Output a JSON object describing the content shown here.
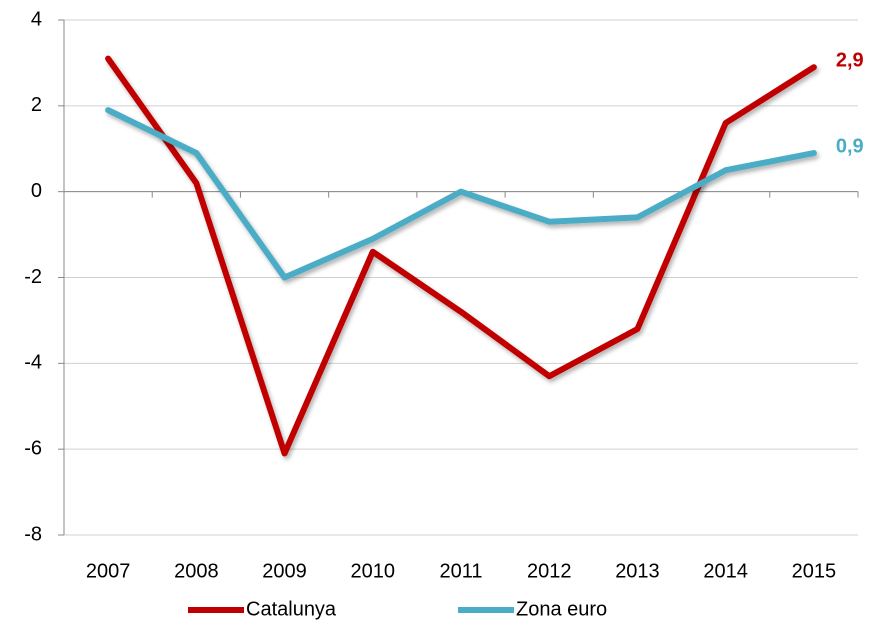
{
  "chart_data": {
    "type": "line",
    "categories": [
      "2007",
      "2008",
      "2009",
      "2010",
      "2011",
      "2012",
      "2013",
      "2014",
      "2015"
    ],
    "series": [
      {
        "name": "Catalunya",
        "color": "#c00000",
        "values": [
          3.1,
          0.2,
          -6.1,
          -1.4,
          -2.8,
          -4.3,
          -3.2,
          1.6,
          2.9
        ],
        "value_labels": [
          null,
          null,
          null,
          null,
          null,
          null,
          null,
          null,
          "2,9"
        ]
      },
      {
        "name": "Zona euro",
        "color": "#4bacc6",
        "values": [
          1.9,
          0.9,
          -2.0,
          -1.1,
          0.0,
          -0.7,
          -0.6,
          0.5,
          0.9
        ],
        "value_labels": [
          null,
          null,
          null,
          null,
          null,
          null,
          null,
          null,
          "0,9"
        ]
      }
    ],
    "ylim": [
      -8,
      4
    ],
    "yticks": [
      -8,
      -6,
      -4,
      -2,
      0,
      2,
      4
    ],
    "grid": true,
    "legend": "bottom"
  }
}
